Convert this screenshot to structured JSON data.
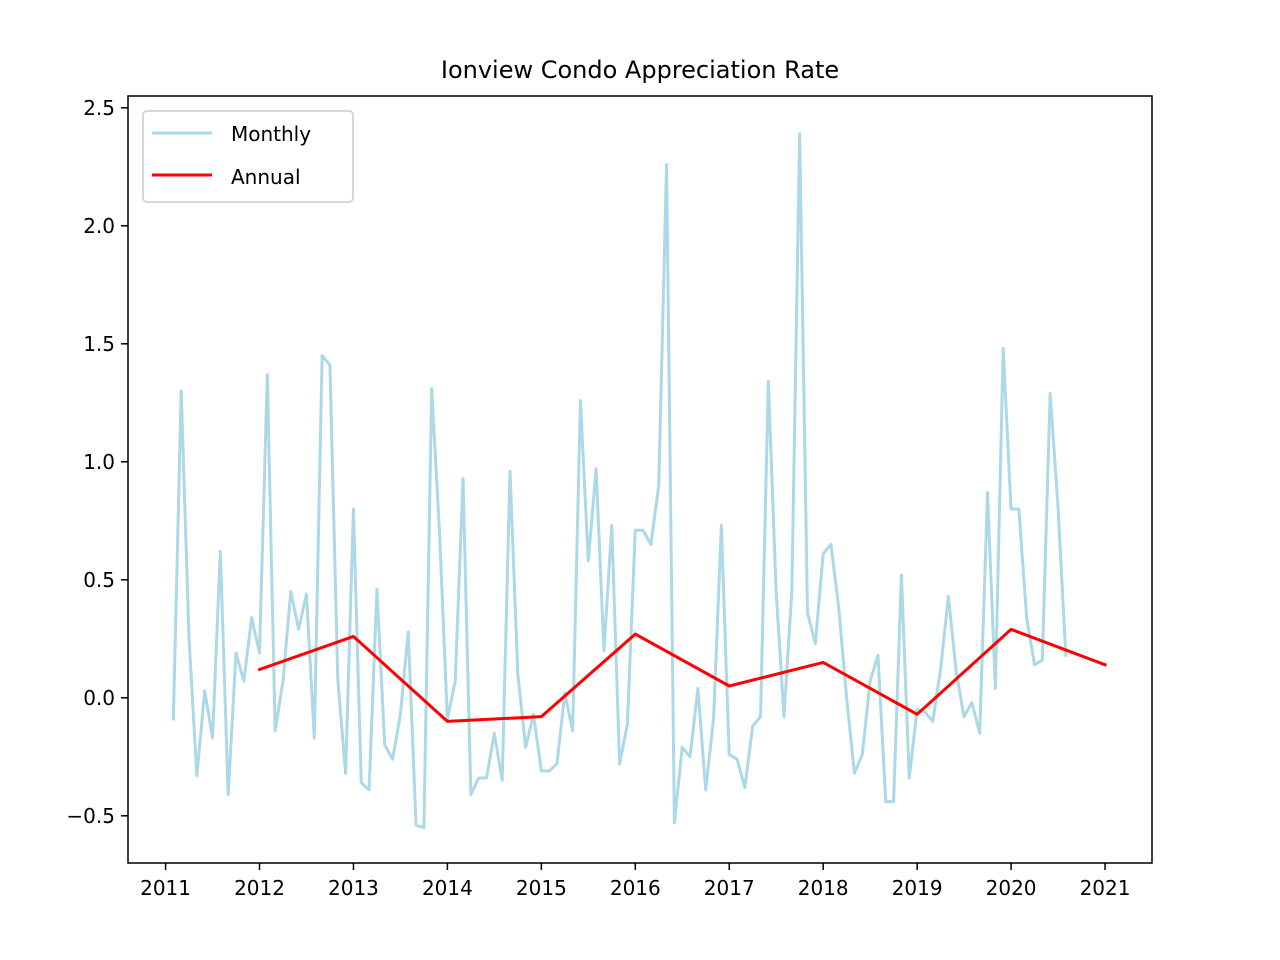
{
  "chart_data": {
    "type": "line",
    "title": "Ionview Condo Appreciation Rate",
    "xlabel": "",
    "ylabel": "",
    "xlim": [
      2010.6,
      2021.5
    ],
    "ylim": [
      -0.7,
      2.55
    ],
    "x_ticks": [
      2011,
      2012,
      2013,
      2014,
      2015,
      2016,
      2017,
      2018,
      2019,
      2020,
      2021
    ],
    "x_tick_labels": [
      "2011",
      "2012",
      "2013",
      "2014",
      "2015",
      "2016",
      "2017",
      "2018",
      "2019",
      "2020",
      "2021"
    ],
    "y_ticks": [
      -0.5,
      0.0,
      0.5,
      1.0,
      1.5,
      2.0,
      2.5
    ],
    "y_tick_labels": [
      "−0.5",
      "0.0",
      "0.5",
      "1.0",
      "1.5",
      "2.0",
      "2.5"
    ],
    "legend": {
      "position": "upper-left"
    },
    "series": [
      {
        "name": "Monthly",
        "color": "#add8e6",
        "x_start": 2011.083,
        "x_step": 0.08333,
        "values": [
          -0.09,
          1.3,
          0.25,
          -0.33,
          0.03,
          -0.17,
          0.62,
          -0.41,
          0.19,
          0.07,
          0.34,
          0.19,
          1.37,
          -0.14,
          0.07,
          0.45,
          0.29,
          0.44,
          -0.17,
          1.45,
          1.41,
          0.08,
          -0.32,
          0.8,
          -0.36,
          -0.39,
          0.46,
          -0.2,
          -0.26,
          -0.07,
          0.28,
          -0.54,
          -0.55,
          1.31,
          0.7,
          -0.09,
          0.07,
          0.93,
          -0.41,
          -0.34,
          -0.34,
          -0.15,
          -0.35,
          0.96,
          0.1,
          -0.21,
          -0.07,
          -0.31,
          -0.31,
          -0.28,
          0.02,
          -0.14,
          1.26,
          0.58,
          0.97,
          0.2,
          0.73,
          -0.28,
          -0.11,
          0.71,
          0.71,
          0.65,
          0.9,
          2.26,
          -0.53,
          -0.21,
          -0.25,
          0.04,
          -0.39,
          -0.09,
          0.73,
          -0.24,
          -0.26,
          -0.38,
          -0.12,
          -0.08,
          1.34,
          0.45,
          -0.08,
          0.45,
          2.39,
          0.36,
          0.23,
          0.61,
          0.65,
          0.38,
          0.0,
          -0.32,
          -0.24,
          0.07,
          0.18,
          -0.44,
          -0.44,
          0.52,
          -0.34,
          -0.05,
          -0.06,
          -0.1,
          0.12,
          0.43,
          0.11,
          -0.08,
          -0.02,
          -0.15,
          0.87,
          0.04,
          1.48,
          0.8,
          0.8,
          0.34,
          0.14,
          0.16,
          1.29,
          0.81,
          0.18
        ]
      },
      {
        "name": "Annual",
        "color": "#ff0000",
        "x": [
          2012,
          2013,
          2014,
          2015,
          2016,
          2017,
          2018,
          2019,
          2020,
          2021
        ],
        "values": [
          0.12,
          0.26,
          -0.1,
          -0.08,
          0.27,
          0.05,
          0.15,
          -0.07,
          0.29,
          0.14
        ]
      }
    ]
  }
}
